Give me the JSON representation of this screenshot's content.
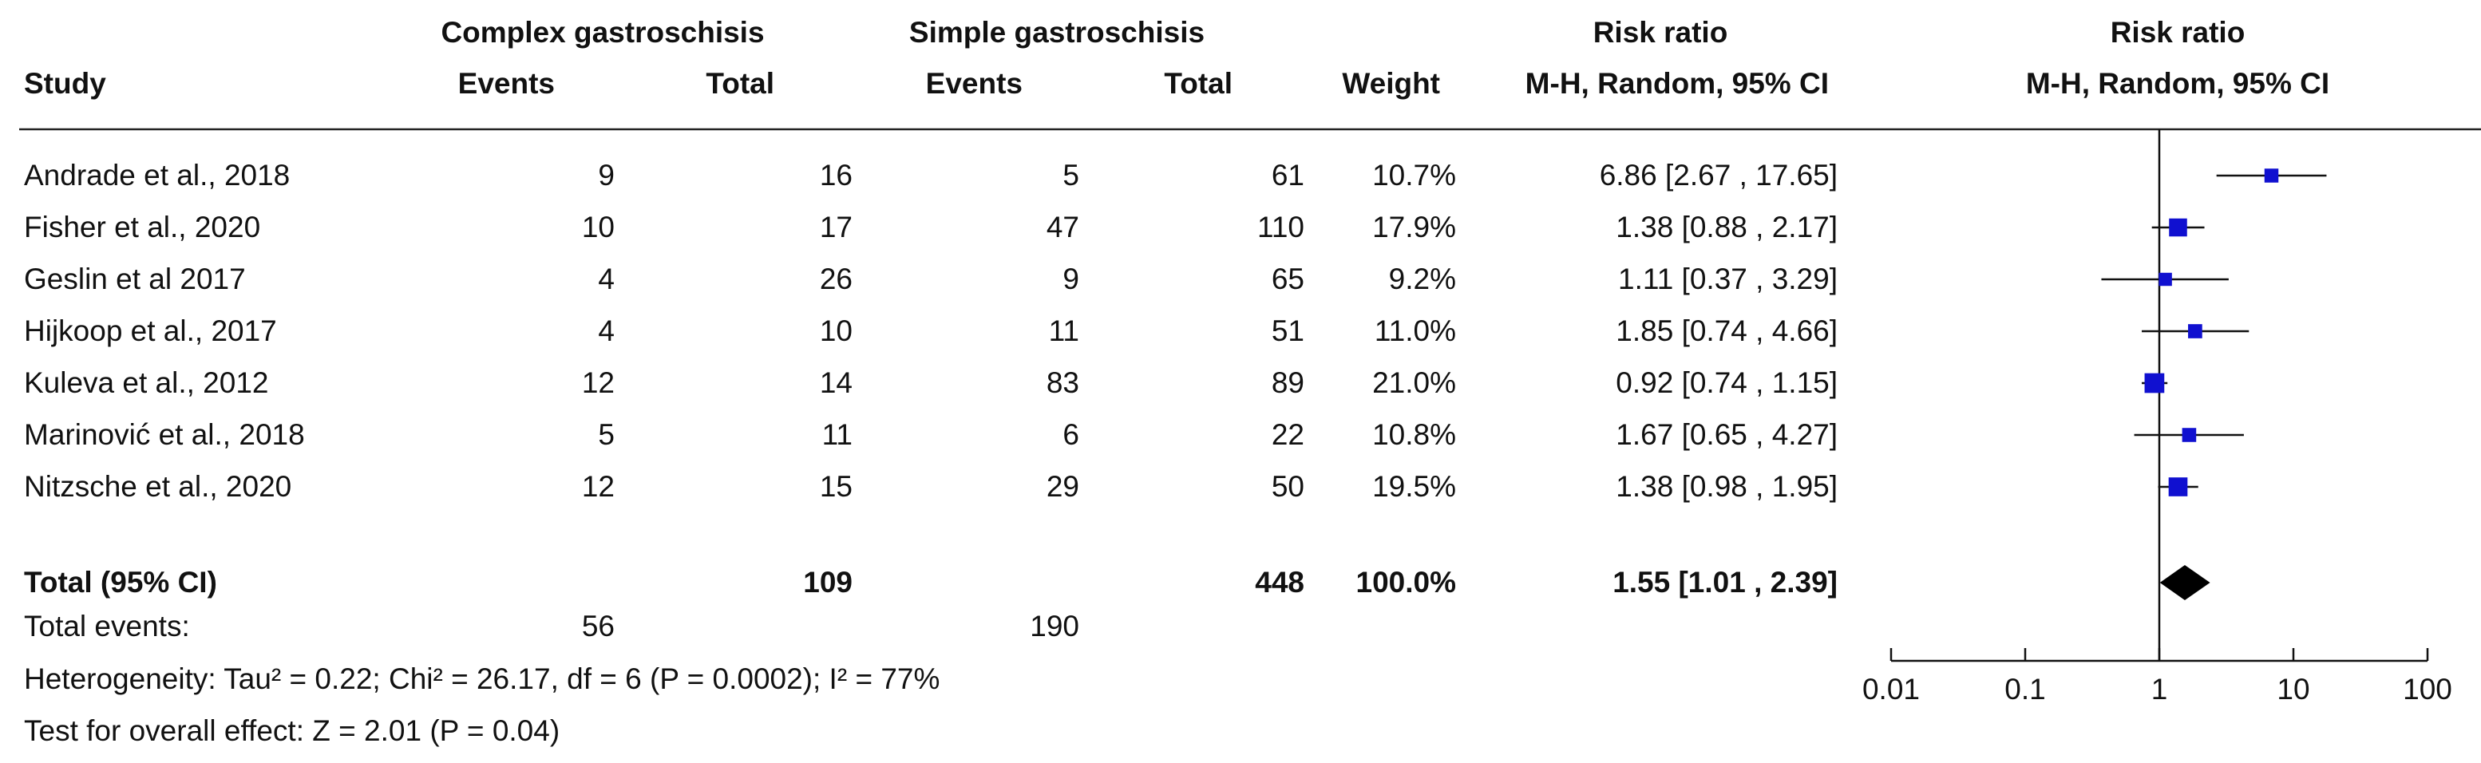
{
  "header": {
    "group1": "Complex gastroschisis",
    "group2": "Simple gastroschisis",
    "rr_table": "Risk ratio",
    "rr_plot": "Risk ratio",
    "study": "Study",
    "events1": "Events",
    "total1": "Total",
    "events2": "Events",
    "total2": "Total",
    "weight": "Weight",
    "method_table": "M-H, Random, 95% CI",
    "method_plot": "M-H, Random, 95% CI"
  },
  "chart_data": {
    "type": "forest",
    "scale": "log",
    "xlim": [
      0.01,
      100
    ],
    "ticks": [
      "0.01",
      "0.1",
      "1",
      "10",
      "100"
    ],
    "tick_values": [
      0.01,
      0.1,
      1,
      10,
      100
    ],
    "null_line": 1,
    "marker_color": "#1010d0",
    "studies": [
      {
        "study": "Andrade et al., 2018",
        "events1": "9",
        "total1": "16",
        "events2": "5",
        "total2": "61",
        "weight": "10.7%",
        "ci_text": "6.86 [2.67 , 17.65]",
        "rr": 6.86,
        "lo": 2.67,
        "hi": 17.65
      },
      {
        "study": "Fisher et al., 2020",
        "events1": "10",
        "total1": "17",
        "events2": "47",
        "total2": "110",
        "weight": "17.9%",
        "ci_text": "1.38 [0.88 , 2.17]",
        "rr": 1.38,
        "lo": 0.88,
        "hi": 2.17
      },
      {
        "study": "Geslin et al 2017",
        "events1": "4",
        "total1": "26",
        "events2": "9",
        "total2": "65",
        "weight": "9.2%",
        "ci_text": "1.11 [0.37 , 3.29]",
        "rr": 1.11,
        "lo": 0.37,
        "hi": 3.29
      },
      {
        "study": "Hijkoop et al., 2017",
        "events1": "4",
        "total1": "10",
        "events2": "11",
        "total2": "51",
        "weight": "11.0%",
        "ci_text": "1.85 [0.74 , 4.66]",
        "rr": 1.85,
        "lo": 0.74,
        "hi": 4.66
      },
      {
        "study": "Kuleva et al., 2012",
        "events1": "12",
        "total1": "14",
        "events2": "83",
        "total2": "89",
        "weight": "21.0%",
        "ci_text": "0.92 [0.74 , 1.15]",
        "rr": 0.92,
        "lo": 0.74,
        "hi": 1.15
      },
      {
        "study": "Marinović et al., 2018",
        "events1": "5",
        "total1": "11",
        "events2": "6",
        "total2": "22",
        "weight": "10.8%",
        "ci_text": "1.67 [0.65 , 4.27]",
        "rr": 1.67,
        "lo": 0.65,
        "hi": 4.27
      },
      {
        "study": "Nitzsche et al., 2020",
        "events1": "12",
        "total1": "15",
        "events2": "29",
        "total2": "50",
        "weight": "19.5%",
        "ci_text": "1.38 [0.98 , 1.95]",
        "rr": 1.38,
        "lo": 0.98,
        "hi": 1.95
      }
    ],
    "total": {
      "label": "Total (95% CI)",
      "total1": "109",
      "total2": "448",
      "weight": "100.0%",
      "ci_text": "1.55 [1.01 , 2.39]",
      "rr": 1.55,
      "lo": 1.01,
      "hi": 2.39
    },
    "total_events": {
      "label": "Total events:",
      "events1": "56",
      "events2": "190"
    },
    "heterogeneity": "Heterogeneity: Tau² = 0.22; Chi² = 26.17, df = 6 (P = 0.0002); I² = 77%",
    "overall_effect": "Test for overall effect: Z = 2.01 (P = 0.04)"
  }
}
